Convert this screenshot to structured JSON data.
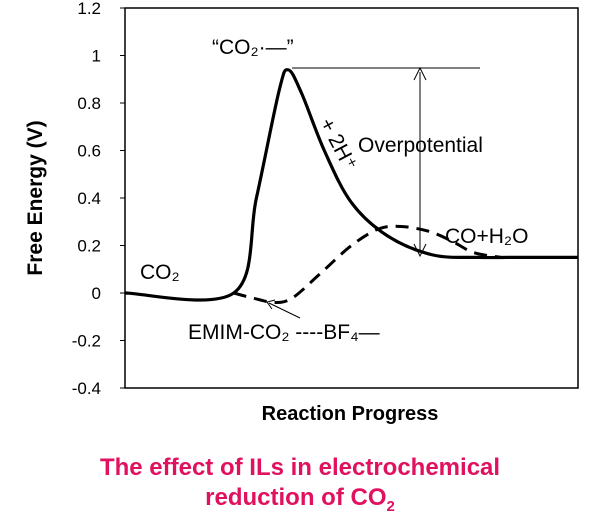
{
  "chart_data": {
    "type": "line",
    "ylabel": "Free Energy (V)",
    "xlabel": "Reaction Progress",
    "ylim": [
      -0.4,
      1.2
    ],
    "yticks": [
      "1.2",
      "1",
      "0.8",
      "0.6",
      "0.4",
      "0.2",
      "0",
      "-0.2",
      "-0.4"
    ],
    "x_range": [
      0,
      10
    ],
    "grid": false,
    "series": [
      {
        "style": "solid",
        "x": [
          0,
          2.4,
          2.9,
          3.4,
          3.6,
          3.9,
          4.4,
          5.0,
          5.8,
          6.8,
          7.8,
          8.5,
          9.3,
          10.0
        ],
        "y": [
          0,
          0,
          0.4,
          0.85,
          0.94,
          0.84,
          0.6,
          0.38,
          0.24,
          0.16,
          0.15,
          0.15,
          0.15,
          0.15
        ]
      },
      {
        "style": "dashed",
        "x": [
          2.4,
          2.8,
          3.3,
          3.7,
          4.3,
          5.0,
          5.6,
          6.1,
          6.7,
          7.2,
          7.7,
          8.3
        ],
        "y": [
          0,
          -0.02,
          -0.04,
          -0.02,
          0.08,
          0.2,
          0.27,
          0.28,
          0.26,
          0.22,
          0.17,
          0.15
        ]
      }
    ],
    "annotations": {
      "co2_left": "CO₂",
      "intermediate": "“CO₂·—”",
      "proton": "+ 2H⁺",
      "overpotential": "Overpotential",
      "product": "CO+H₂O",
      "emim": "EMIM-CO₂ ----BF₄—"
    }
  },
  "caption": {
    "line1": "The effect of ILs in electrochemical",
    "line2_prefix": "reduction of CO",
    "line2_sub": "2"
  }
}
